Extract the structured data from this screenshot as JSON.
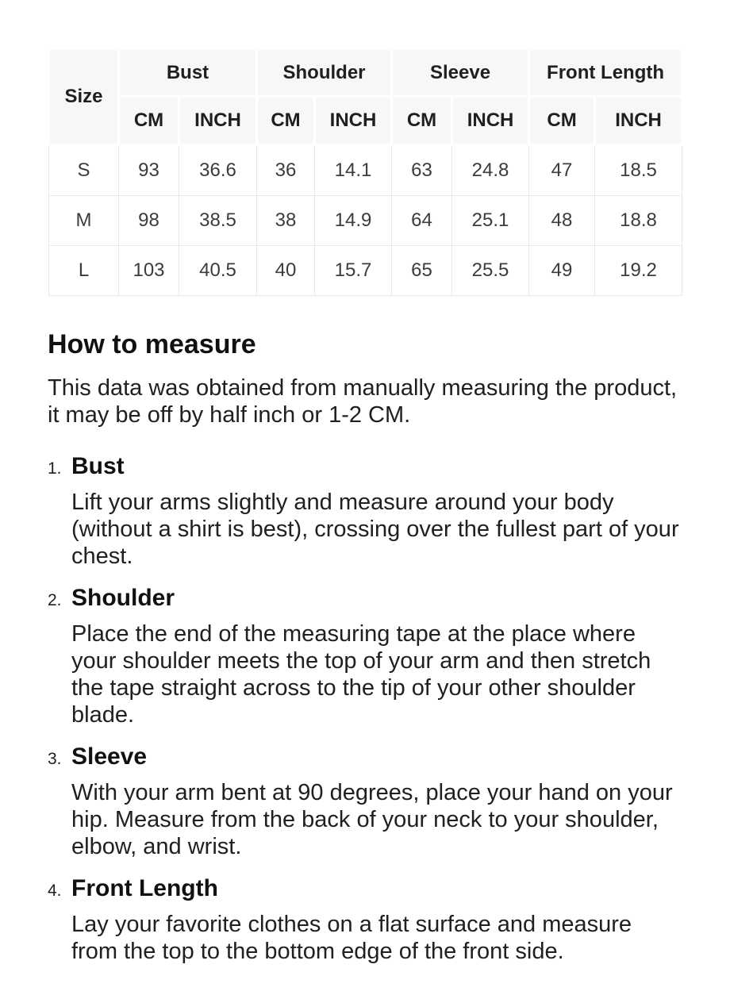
{
  "size_chart": {
    "corner_label": "Size",
    "groups": [
      {
        "label": "Bust"
      },
      {
        "label": "Shoulder"
      },
      {
        "label": "Sleeve"
      },
      {
        "label": "Front Length"
      }
    ],
    "units": [
      "CM",
      "INCH",
      "CM",
      "INCH",
      "CM",
      "INCH",
      "CM",
      "INCH"
    ],
    "rows": [
      {
        "size": "S",
        "values": [
          "93",
          "36.6",
          "36",
          "14.1",
          "63",
          "24.8",
          "47",
          "18.5"
        ]
      },
      {
        "size": "M",
        "values": [
          "98",
          "38.5",
          "38",
          "14.9",
          "64",
          "25.1",
          "48",
          "18.8"
        ]
      },
      {
        "size": "L",
        "values": [
          "103",
          "40.5",
          "40",
          "15.7",
          "65",
          "25.5",
          "49",
          "19.2"
        ]
      }
    ]
  },
  "how_to_measure": {
    "title": "How to measure",
    "intro": "This data was obtained from manually measuring the product, it may be off by half inch or 1-2 CM.",
    "steps": [
      {
        "number": "1.",
        "term": "Bust",
        "description": "Lift your arms slightly and measure around your body (without a shirt is best), crossing over the fullest part of your chest."
      },
      {
        "number": "2.",
        "term": "Shoulder",
        "description": "Place the end of the measuring tape at the place where your shoulder meets the top of your arm and then stretch the tape straight across to the tip of your other shoulder blade."
      },
      {
        "number": "3.",
        "term": "Sleeve",
        "description": "With your arm bent at 90 degrees, place your hand on your hip. Measure from the back of your neck to your shoulder, elbow, and wrist."
      },
      {
        "number": "4.",
        "term": "Front Length",
        "description": "Lay your favorite clothes on a flat surface and measure from the top to the bottom edge of the front side."
      }
    ]
  },
  "colors": {
    "table_header_bg": "#f7f7f7",
    "table_border": "#e9e9e9",
    "heading_text": "#111111",
    "body_text": "#202020"
  }
}
